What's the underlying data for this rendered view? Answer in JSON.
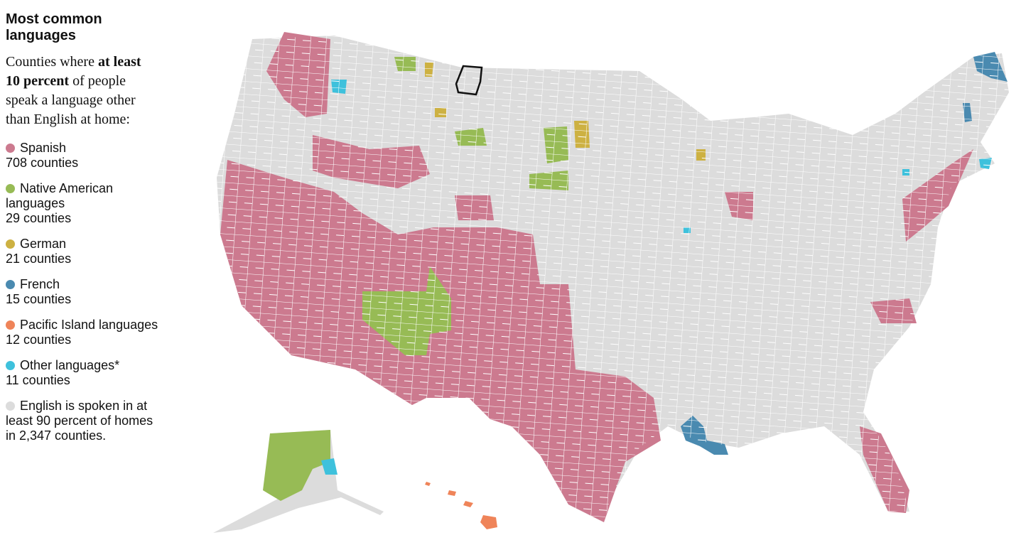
{
  "header": {
    "title": "Most common languages",
    "description": {
      "before": "Counties where ",
      "bold": "at least 10 percent",
      "after": " of people speak a language other than English at home:"
    }
  },
  "legend": [
    {
      "name": "Spanish",
      "count": "708 counties",
      "color": "#cc7a8f"
    },
    {
      "name": "Native American languages",
      "count": "29 counties",
      "color": "#97bb55"
    },
    {
      "name": "German",
      "count": "21 counties",
      "color": "#cdb142"
    },
    {
      "name": "French",
      "count": "15 counties",
      "color": "#4a8ab0"
    },
    {
      "name": "Pacific Island languages",
      "count": "12 counties",
      "color": "#ef8459"
    },
    {
      "name": "Other languages*",
      "count": "11 counties",
      "color": "#3ec1dc"
    },
    {
      "name": "English is spoken in at least 90 percent of homes in 2,347 counties.",
      "color": "#dcdcdc"
    }
  ]
}
